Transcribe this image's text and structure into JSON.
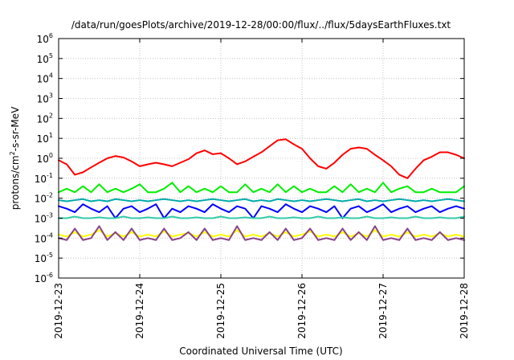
{
  "chart_data": {
    "type": "line",
    "title": "/data/run/goesPlots/archive/2019-12-28/00:00/flux/../flux/5daysEarthFluxes.txt",
    "xlabel": "Coordinated Universal Time (UTC)",
    "ylabel": {
      "base": "protons/cm",
      "exp": "2",
      "rest": "-s-sr-MeV"
    },
    "yscale": "log",
    "ylim": [
      1e-06,
      1000000.0
    ],
    "xlim": [
      "2019-12-23",
      "2019-12-28"
    ],
    "x_ticks": [
      "2019-12-23",
      "2019-12-24",
      "2019-12-25",
      "2019-12-26",
      "2019-12-27",
      "2019-12-28"
    ],
    "y_ticks": [
      {
        "value": 1e-06,
        "base": "10",
        "exp": "-6"
      },
      {
        "value": 1e-05,
        "base": "10",
        "exp": "-5"
      },
      {
        "value": 0.0001,
        "base": "10",
        "exp": "-4"
      },
      {
        "value": 0.001,
        "base": "10",
        "exp": "-3"
      },
      {
        "value": 0.01,
        "base": "10",
        "exp": "-2"
      },
      {
        "value": 0.1,
        "base": "10",
        "exp": "-1"
      },
      {
        "value": 1,
        "base": "10",
        "exp": "0"
      },
      {
        "value": 10,
        "base": "10",
        "exp": "1"
      },
      {
        "value": 100,
        "base": "10",
        "exp": "2"
      },
      {
        "value": 1000,
        "base": "10",
        "exp": "3"
      },
      {
        "value": 10000,
        "base": "10",
        "exp": "4"
      },
      {
        "value": 100000,
        "base": "10",
        "exp": "5"
      },
      {
        "value": 1000000,
        "base": "10",
        "exp": "6"
      }
    ],
    "grid": true,
    "legend": "none",
    "x_days": [
      0,
      0.1,
      0.2,
      0.3,
      0.4,
      0.5,
      0.6,
      0.7,
      0.8,
      0.9,
      1.0,
      1.1,
      1.2,
      1.3,
      1.4,
      1.5,
      1.6,
      1.7,
      1.8,
      1.9,
      2.0,
      2.1,
      2.2,
      2.3,
      2.4,
      2.5,
      2.6,
      2.7,
      2.8,
      2.9,
      3.0,
      3.1,
      3.2,
      3.3,
      3.4,
      3.5,
      3.6,
      3.7,
      3.8,
      3.9,
      4.0,
      4.1,
      4.2,
      4.3,
      4.4,
      4.5,
      4.6,
      4.7,
      4.8,
      4.9,
      5.0
    ],
    "series": [
      {
        "color": "#ff0000",
        "width": 2,
        "values": [
          0.8,
          0.5,
          0.15,
          0.2,
          0.35,
          0.6,
          1.0,
          1.3,
          1.1,
          0.7,
          0.4,
          0.5,
          0.6,
          0.5,
          0.4,
          0.6,
          0.9,
          1.8,
          2.5,
          1.6,
          1.8,
          1.0,
          0.5,
          0.7,
          1.2,
          2.0,
          4.0,
          8.0,
          9.0,
          5.0,
          3.0,
          1.0,
          0.4,
          0.3,
          0.6,
          1.5,
          3.0,
          3.5,
          3.0,
          1.5,
          0.8,
          0.4,
          0.15,
          0.1,
          0.3,
          0.8,
          1.2,
          2.0,
          2.0,
          1.5,
          1.0
        ]
      },
      {
        "color": "#00ee00",
        "width": 2,
        "values": [
          0.02,
          0.03,
          0.02,
          0.04,
          0.02,
          0.05,
          0.02,
          0.03,
          0.02,
          0.03,
          0.05,
          0.02,
          0.02,
          0.03,
          0.06,
          0.02,
          0.04,
          0.02,
          0.03,
          0.02,
          0.04,
          0.02,
          0.02,
          0.05,
          0.02,
          0.03,
          0.02,
          0.05,
          0.02,
          0.04,
          0.02,
          0.03,
          0.02,
          0.02,
          0.04,
          0.02,
          0.05,
          0.02,
          0.03,
          0.02,
          0.06,
          0.02,
          0.03,
          0.04,
          0.02,
          0.02,
          0.03,
          0.02,
          0.02,
          0.02,
          0.04
        ]
      },
      {
        "color": "#00aaaa",
        "width": 2,
        "values": [
          0.008,
          0.007,
          0.008,
          0.009,
          0.007,
          0.008,
          0.007,
          0.009,
          0.008,
          0.007,
          0.008,
          0.007,
          0.008,
          0.009,
          0.008,
          0.007,
          0.008,
          0.007,
          0.008,
          0.009,
          0.008,
          0.007,
          0.008,
          0.009,
          0.007,
          0.008,
          0.007,
          0.009,
          0.008,
          0.007,
          0.008,
          0.007,
          0.008,
          0.009,
          0.008,
          0.007,
          0.008,
          0.009,
          0.007,
          0.008,
          0.007,
          0.008,
          0.009,
          0.008,
          0.007,
          0.008,
          0.007,
          0.008,
          0.009,
          0.008,
          0.007
        ]
      },
      {
        "color": "#0000ff",
        "width": 2,
        "values": [
          0.004,
          0.003,
          0.002,
          0.005,
          0.003,
          0.002,
          0.004,
          0.001,
          0.003,
          0.004,
          0.002,
          0.003,
          0.005,
          0.001,
          0.003,
          0.002,
          0.004,
          0.003,
          0.002,
          0.005,
          0.003,
          0.002,
          0.004,
          0.003,
          0.001,
          0.004,
          0.003,
          0.002,
          0.005,
          0.003,
          0.002,
          0.004,
          0.003,
          0.002,
          0.004,
          0.001,
          0.003,
          0.004,
          0.002,
          0.003,
          0.005,
          0.002,
          0.003,
          0.004,
          0.002,
          0.003,
          0.004,
          0.002,
          0.003,
          0.004,
          0.003
        ]
      },
      {
        "color": "#33ccaa",
        "width": 2,
        "values": [
          0.001,
          0.001,
          0.0012,
          0.001,
          0.001,
          0.0011,
          0.001,
          0.001,
          0.0012,
          0.001,
          0.001,
          0.0011,
          0.001,
          0.001,
          0.0012,
          0.001,
          0.001,
          0.0011,
          0.001,
          0.001,
          0.0012,
          0.001,
          0.001,
          0.0011,
          0.001,
          0.001,
          0.0012,
          0.001,
          0.001,
          0.0011,
          0.001,
          0.001,
          0.0012,
          0.001,
          0.001,
          0.0011,
          0.001,
          0.001,
          0.0012,
          0.001,
          0.001,
          0.0011,
          0.001,
          0.001,
          0.0012,
          0.001,
          0.001,
          0.0011,
          0.001,
          0.001,
          0.0012
        ]
      },
      {
        "color": "#ffff00",
        "width": 2,
        "values": [
          0.00015,
          0.00012,
          0.0002,
          0.00012,
          0.00015,
          0.00025,
          0.00012,
          0.00018,
          0.00012,
          0.0002,
          0.00012,
          0.00015,
          0.00012,
          0.00022,
          0.00012,
          0.00015,
          0.00018,
          0.00012,
          0.0002,
          0.00012,
          0.00015,
          0.00012,
          0.00025,
          0.00012,
          0.00015,
          0.00012,
          0.00018,
          0.00012,
          0.0002,
          0.00012,
          0.00015,
          0.00022,
          0.00012,
          0.00015,
          0.00012,
          0.0002,
          0.00012,
          0.00018,
          0.00012,
          0.00025,
          0.00012,
          0.00015,
          0.00012,
          0.0002,
          0.00012,
          0.00015,
          0.00012,
          0.00018,
          0.00012,
          0.00015,
          0.00012
        ]
      },
      {
        "color": "#884488",
        "width": 2,
        "values": [
          0.0001,
          8e-05,
          0.0003,
          8e-05,
          0.0001,
          0.0004,
          8e-05,
          0.0002,
          8e-05,
          0.0003,
          8e-05,
          0.0001,
          8e-05,
          0.0003,
          8e-05,
          0.0001,
          0.0002,
          8e-05,
          0.0003,
          8e-05,
          0.0001,
          8e-05,
          0.0004,
          8e-05,
          0.0001,
          8e-05,
          0.0002,
          8e-05,
          0.0003,
          8e-05,
          0.0001,
          0.0003,
          8e-05,
          0.0001,
          8e-05,
          0.0003,
          8e-05,
          0.0002,
          8e-05,
          0.0004,
          8e-05,
          0.0001,
          8e-05,
          0.0003,
          8e-05,
          0.0001,
          8e-05,
          0.0002,
          8e-05,
          0.0001,
          8e-05
        ]
      }
    ]
  }
}
